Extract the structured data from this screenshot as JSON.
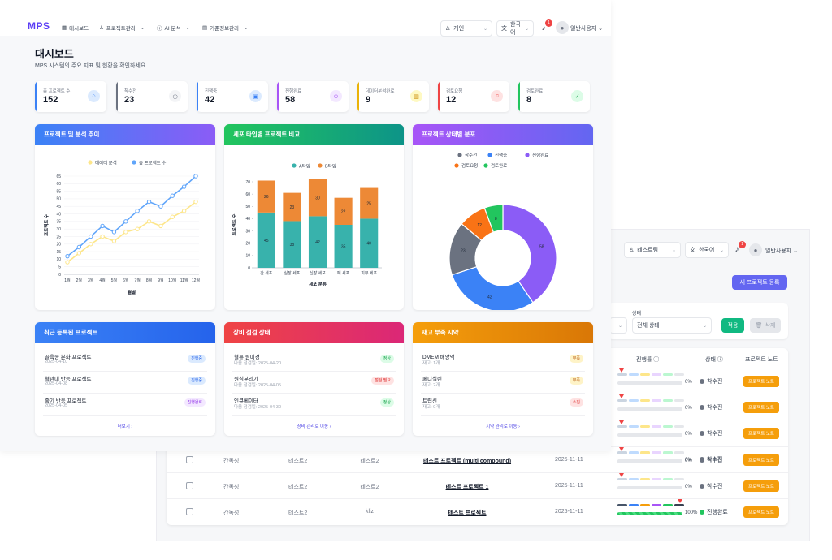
{
  "nav": {
    "logo": "MPS",
    "items": [
      {
        "icon": "dashboard-icon",
        "glyph": "▦",
        "label": "대시보드",
        "has_menu": false
      },
      {
        "icon": "person-icon",
        "glyph": "♙",
        "label": "프로젝트관리",
        "has_menu": true
      },
      {
        "icon": "ai-icon",
        "glyph": "ⓘ",
        "label": "AI 분석",
        "has_menu": true
      },
      {
        "icon": "calendar-icon",
        "glyph": "▤",
        "label": "기준정보관리",
        "has_menu": true
      }
    ],
    "workspace_select": "개인",
    "language_select": "한국어",
    "notification_count": "1",
    "user_name": "일반사용자"
  },
  "page": {
    "title": "대시보드",
    "subtitle": "MPS 시스템의 주요 지표 및 현황을 확인하세요."
  },
  "stats": [
    {
      "label": "총 프로젝트 수",
      "value": "152",
      "color": "#3b82f6",
      "icon_bg": "#dbeafe",
      "icon_color": "#3b82f6",
      "icon": "briefcase-icon",
      "glyph": "⌂"
    },
    {
      "label": "착수전",
      "value": "23",
      "color": "#6b7280",
      "icon_bg": "#f3f4f6",
      "icon_color": "#6b7280",
      "icon": "clock-icon",
      "glyph": "◷"
    },
    {
      "label": "진행중",
      "value": "42",
      "color": "#3b82f6",
      "icon_bg": "#dbeafe",
      "icon_color": "#3b82f6",
      "icon": "clipboard-icon",
      "glyph": "▣"
    },
    {
      "label": "진행완료",
      "value": "58",
      "color": "#a855f7",
      "icon_bg": "#f3e8ff",
      "icon_color": "#a855f7",
      "icon": "check-circle-icon",
      "glyph": "⊙"
    },
    {
      "label": "데이터분석완료",
      "value": "9",
      "color": "#eab308",
      "icon_bg": "#fef9c3",
      "icon_color": "#ca8a04",
      "icon": "bar-chart-icon",
      "glyph": "▥"
    },
    {
      "label": "검토요청",
      "value": "12",
      "color": "#ef4444",
      "icon_bg": "#fee2e2",
      "icon_color": "#ef4444",
      "icon": "bell-icon",
      "glyph": "♫"
    },
    {
      "label": "검토완료",
      "value": "8",
      "color": "#22c55e",
      "icon_bg": "#dcfce7",
      "icon_color": "#16a34a",
      "icon": "check-icon",
      "glyph": "✓"
    }
  ],
  "panels": {
    "line_title": "프로젝트 및 분석 추이",
    "bar_title": "세포 타입별 프로젝트 비교",
    "donut_title": "프로젝트 상태별 분포",
    "recent_title": "최근 등록된 프로젝트",
    "equipment_title": "장비 점검 상태",
    "stock_title": "재고 부족 시약"
  },
  "chart_data": [
    {
      "type": "line",
      "title": "프로젝트 및 분석 추이",
      "xlabel": "월별",
      "ylabel": "프로젝트 수",
      "categories": [
        "1월",
        "2월",
        "3월",
        "4월",
        "5월",
        "6월",
        "7월",
        "8월",
        "9월",
        "10월",
        "11월",
        "12월"
      ],
      "ylim": [
        0,
        65
      ],
      "yticks": [
        0,
        5,
        10,
        15,
        20,
        25,
        30,
        35,
        40,
        45,
        50,
        55,
        60,
        65
      ],
      "legend_position": "top",
      "series": [
        {
          "name": "데이터 분석",
          "color": "#fde68a",
          "values": [
            8,
            14,
            20,
            25,
            22,
            28,
            30,
            35,
            32,
            38,
            42,
            48
          ]
        },
        {
          "name": "총 프로젝트 수",
          "color": "#60a5fa",
          "values": [
            12,
            18,
            25,
            32,
            28,
            35,
            42,
            48,
            45,
            52,
            58,
            65
          ]
        }
      ]
    },
    {
      "type": "bar",
      "stacked": true,
      "title": "세포 타입별 프로젝트 비교",
      "xlabel": "세포 분류",
      "ylabel": "프로젝트 수",
      "categories": [
        "간 세포",
        "심장 세포",
        "신장 세포",
        "폐 세포",
        "피부 세포"
      ],
      "ylim": [
        0,
        70
      ],
      "yticks": [
        0,
        10,
        20,
        30,
        40,
        50,
        60,
        70
      ],
      "legend_position": "top",
      "series": [
        {
          "name": "A타입",
          "color": "#38b2ac",
          "values": [
            45,
            38,
            42,
            35,
            40
          ]
        },
        {
          "name": "B타입",
          "color": "#ed8936",
          "values": [
            26,
            23,
            30,
            22,
            25
          ]
        }
      ]
    },
    {
      "type": "pie",
      "donut": true,
      "title": "프로젝트 상태별 분포",
      "legend_position": "top",
      "series": [
        {
          "name": "착수전",
          "value": 23,
          "color": "#6b7280"
        },
        {
          "name": "진행중",
          "value": 42,
          "color": "#3b82f6"
        },
        {
          "name": "진행완료",
          "value": 58,
          "color": "#8b5cf6"
        },
        {
          "name": "검토요청",
          "value": 12,
          "color": "#f97316"
        },
        {
          "name": "검토완료",
          "value": 8,
          "color": "#22c55e"
        }
      ]
    }
  ],
  "recent_projects": {
    "items": [
      {
        "title": "골육종 분화 프로젝트",
        "date": "2025-04-10",
        "status": "진행중",
        "status_bg": "#dbeafe",
        "status_color": "#2563eb"
      },
      {
        "title": "혈관내 반응 프로젝트",
        "date": "2025-04-08",
        "status": "진행중",
        "status_bg": "#dbeafe",
        "status_color": "#2563eb"
      },
      {
        "title": "줄기 반응 프로젝트",
        "date": "2025-04-05",
        "status": "진행완료",
        "status_bg": "#f3e8ff",
        "status_color": "#9333ea"
      }
    ],
    "more": "더보기 ›"
  },
  "equipment": {
    "items": [
      {
        "title": "혈류 원미경",
        "date": "다음 점검일: 2025-04-20",
        "status": "정상",
        "status_bg": "#dcfce7",
        "status_color": "#16a34a"
      },
      {
        "title": "원심분리기",
        "date": "다음 점검일: 2025-04-05",
        "status": "점검 필요",
        "status_bg": "#fee2e2",
        "status_color": "#dc2626"
      },
      {
        "title": "인큐베이터",
        "date": "다음 점검일: 2025-04-30",
        "status": "정상",
        "status_bg": "#dcfce7",
        "status_color": "#16a34a"
      }
    ],
    "more": "장비 관리로 이동 ›"
  },
  "stock": {
    "items": [
      {
        "title": "DMEM 배양액",
        "qty": "재고: 1개",
        "status": "부족",
        "status_bg": "#fef3c7",
        "status_color": "#b45309"
      },
      {
        "title": "페니실린",
        "qty": "재고: 2개",
        "status": "부족",
        "status_bg": "#fef3c7",
        "status_color": "#b45309"
      },
      {
        "title": "트립신",
        "qty": "재고: 0개",
        "status": "소진",
        "status_bg": "#fee2e2",
        "status_color": "#dc2626"
      }
    ],
    "more": "시약 관리로 이동 ›"
  },
  "back": {
    "team_select": "테스트팀",
    "language_select": "한국어",
    "notification_count": "1",
    "user_name": "일반사용자",
    "new_project_button": "새 프로젝트 등록",
    "status_filter_label": "상태",
    "status_filter_value": "전체 상태",
    "apply_button": "적용",
    "delete_button": "삭제",
    "columns": {
      "progress": "진행률",
      "status": "상태",
      "note": "프로젝트 노트"
    },
    "stage_colors": [
      "#cbd5e1",
      "#bfdbfe",
      "#fde68a",
      "#e9d5ff",
      "#bbf7d0",
      "#e5e7eb"
    ],
    "stage_colors_done": [
      "#475569",
      "#3b82f6",
      "#f59e0b",
      "#a855f7",
      "#22c55e",
      "#374151"
    ],
    "partial_rows": [
      {
        "progress": "0%",
        "status": "착수전",
        "note": "프로젝트 노트"
      },
      {
        "progress": "0%",
        "status": "착수전",
        "note": "프로젝트 노트"
      },
      {
        "progress": "0%",
        "status": "착수전",
        "note": "프로젝트 노트"
      },
      {
        "progress": "0%",
        "status": "착수전",
        "note": "프로젝트 노트"
      }
    ],
    "rows": [
      {
        "manager": "간독성",
        "team": "테스트2",
        "author": "테스트2",
        "title": "테스트 프로젝트 (multi compound)",
        "date": "2025-11-11",
        "progress": "0%",
        "progress_value": 0,
        "status": "착수전",
        "status_color": "#6b7280",
        "note": "프로젝트 노트"
      },
      {
        "manager": "간독성",
        "team": "테스트2",
        "author": "테스트2",
        "title": "테스트 프로젝트 1",
        "date": "2025-11-11",
        "progress": "0%",
        "progress_value": 0,
        "status": "착수전",
        "status_color": "#6b7280",
        "note": "프로젝트 노트"
      },
      {
        "manager": "간독성",
        "team": "테스트2",
        "author": "kliz",
        "title": "테스트 프로젝트",
        "date": "2025-11-11",
        "progress": "100%",
        "progress_value": 100,
        "status": "진행완료",
        "status_color": "#22c55e",
        "note": "프로젝트 노트"
      }
    ]
  }
}
